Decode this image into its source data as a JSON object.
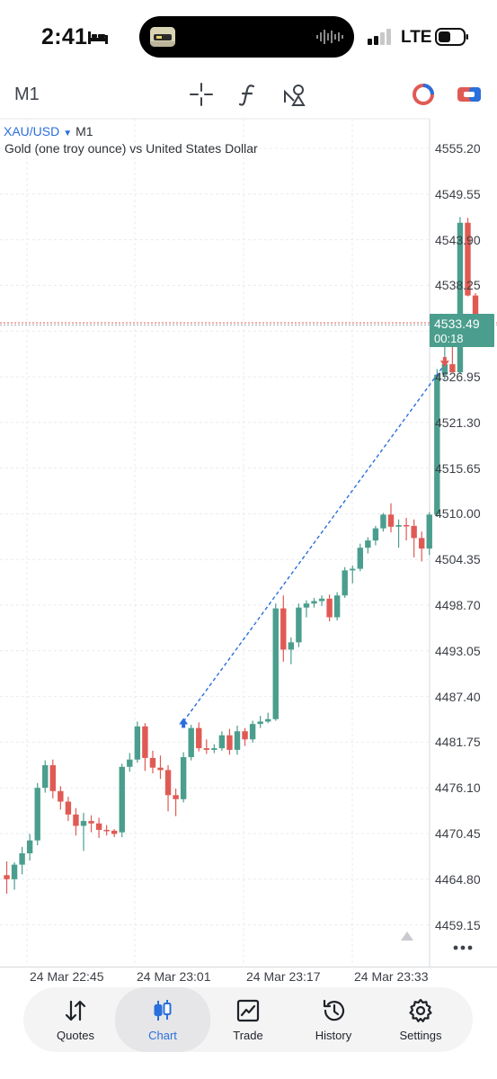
{
  "status_bar": {
    "time": "2:41",
    "network": "LTE"
  },
  "toolbar": {
    "timeframe": "M1",
    "tools": [
      "crosshair-icon",
      "indicators-icon",
      "objects-icon",
      "one-click-trading-icon",
      "account-icon"
    ]
  },
  "chart": {
    "symbol": "XAU/USD",
    "timeframe": "M1",
    "description": "Gold (one troy ounce) vs United States Dollar",
    "current_price": "4533.49",
    "countdown": "00:18",
    "bull_color": "#4b9e8d",
    "bear_color": "#e05a54",
    "trade_line_color": "#2a6fdb",
    "price_ticks": [
      "4555.20",
      "4549.55",
      "4543.90",
      "4538.25",
      "4532.60",
      "4526.95",
      "4521.30",
      "4515.65",
      "4510.00",
      "4504.35",
      "4498.70",
      "4493.05",
      "4487.40",
      "4481.75",
      "4476.10",
      "4470.45",
      "4464.80",
      "4459.15"
    ],
    "time_ticks": [
      "24 Mar 22:45",
      "24 Mar 23:01",
      "24 Mar 23:17",
      "24 Mar 23:33"
    ]
  },
  "chart_data": {
    "type": "candlestick",
    "symbol": "XAU/USD",
    "timeframe": "M1",
    "title": "XAU/USD",
    "subtitle": "Gold (one troy ounce) vs United States Dollar",
    "ylim": [
      4455.5,
      4558.5
    ],
    "grid": true,
    "categories_labels": [
      "24 Mar 22:45",
      "24 Mar 23:01",
      "24 Mar 23:17",
      "24 Mar 23:33"
    ],
    "candles": [
      {
        "o": 4465.3,
        "h": 4467.0,
        "l": 4463.0,
        "c": 4464.8
      },
      {
        "o": 4464.8,
        "h": 4466.9,
        "l": 4463.5,
        "c": 4466.6
      },
      {
        "o": 4466.6,
        "h": 4468.8,
        "l": 4465.4,
        "c": 4468.0
      },
      {
        "o": 4468.0,
        "h": 4470.4,
        "l": 4467.1,
        "c": 4469.6
      },
      {
        "o": 4469.6,
        "h": 4476.7,
        "l": 4469.0,
        "c": 4476.1
      },
      {
        "o": 4476.1,
        "h": 4479.5,
        "l": 4475.5,
        "c": 4478.9
      },
      {
        "o": 4478.9,
        "h": 4479.6,
        "l": 4474.8,
        "c": 4475.7
      },
      {
        "o": 4475.7,
        "h": 4476.3,
        "l": 4473.4,
        "c": 4474.4
      },
      {
        "o": 4474.4,
        "h": 4475.0,
        "l": 4472.0,
        "c": 4472.8
      },
      {
        "o": 4472.8,
        "h": 4473.6,
        "l": 4470.2,
        "c": 4471.4
      },
      {
        "o": 4471.4,
        "h": 4473.0,
        "l": 4468.3,
        "c": 4472.0
      },
      {
        "o": 4472.0,
        "h": 4472.7,
        "l": 4470.6,
        "c": 4471.7
      },
      {
        "o": 4471.7,
        "h": 4472.4,
        "l": 4469.9,
        "c": 4470.9
      },
      {
        "o": 4470.9,
        "h": 4471.5,
        "l": 4470.2,
        "c": 4470.8
      },
      {
        "o": 4470.8,
        "h": 4471.0,
        "l": 4470.0,
        "c": 4470.4
      },
      {
        "o": 4470.6,
        "h": 4479.1,
        "l": 4470.0,
        "c": 4478.7
      },
      {
        "o": 4478.7,
        "h": 4480.4,
        "l": 4478.1,
        "c": 4479.6
      },
      {
        "o": 4479.6,
        "h": 4484.3,
        "l": 4479.2,
        "c": 4483.7
      },
      {
        "o": 4483.7,
        "h": 4484.1,
        "l": 4478.2,
        "c": 4479.8
      },
      {
        "o": 4479.8,
        "h": 4480.7,
        "l": 4477.9,
        "c": 4478.6
      },
      {
        "o": 4478.6,
        "h": 4480.1,
        "l": 4477.2,
        "c": 4478.3
      },
      {
        "o": 4478.3,
        "h": 4478.9,
        "l": 4473.2,
        "c": 4475.2
      },
      {
        "o": 4475.2,
        "h": 4476.0,
        "l": 4472.6,
        "c": 4474.7
      },
      {
        "o": 4474.7,
        "h": 4480.5,
        "l": 4474.3,
        "c": 4479.9
      },
      {
        "o": 4479.9,
        "h": 4483.9,
        "l": 4479.5,
        "c": 4483.5
      },
      {
        "o": 4483.5,
        "h": 4484.2,
        "l": 4480.6,
        "c": 4481.0
      },
      {
        "o": 4481.0,
        "h": 4482.1,
        "l": 4480.3,
        "c": 4480.8
      },
      {
        "o": 4480.8,
        "h": 4481.5,
        "l": 4480.4,
        "c": 4481.0
      },
      {
        "o": 4481.0,
        "h": 4483.1,
        "l": 4480.7,
        "c": 4482.6
      },
      {
        "o": 4482.6,
        "h": 4483.4,
        "l": 4480.2,
        "c": 4480.8
      },
      {
        "o": 4480.8,
        "h": 4483.8,
        "l": 4480.2,
        "c": 4483.1
      },
      {
        "o": 4483.1,
        "h": 4483.5,
        "l": 4481.3,
        "c": 4482.1
      },
      {
        "o": 4482.1,
        "h": 4484.4,
        "l": 4481.7,
        "c": 4484.0
      },
      {
        "o": 4484.0,
        "h": 4485.0,
        "l": 4483.5,
        "c": 4484.3
      },
      {
        "o": 4484.3,
        "h": 4485.4,
        "l": 4484.1,
        "c": 4484.6
      },
      {
        "o": 4484.6,
        "h": 4498.9,
        "l": 4484.4,
        "c": 4498.3
      },
      {
        "o": 4498.3,
        "h": 4499.9,
        "l": 4491.7,
        "c": 4493.2
      },
      {
        "o": 4493.2,
        "h": 4494.7,
        "l": 4491.4,
        "c": 4494.1
      },
      {
        "o": 4494.1,
        "h": 4498.9,
        "l": 4493.5,
        "c": 4498.4
      },
      {
        "o": 4498.4,
        "h": 4499.3,
        "l": 4497.2,
        "c": 4498.9
      },
      {
        "o": 4498.9,
        "h": 4499.6,
        "l": 4498.4,
        "c": 4499.2
      },
      {
        "o": 4499.2,
        "h": 4499.9,
        "l": 4498.6,
        "c": 4499.5
      },
      {
        "o": 4499.5,
        "h": 4500.0,
        "l": 4496.7,
        "c": 4497.2
      },
      {
        "o": 4497.2,
        "h": 4500.3,
        "l": 4496.8,
        "c": 4499.9
      },
      {
        "o": 4499.9,
        "h": 4503.4,
        "l": 4499.6,
        "c": 4503.0
      },
      {
        "o": 4503.0,
        "h": 4503.6,
        "l": 4501.4,
        "c": 4503.2
      },
      {
        "o": 4503.2,
        "h": 4506.3,
        "l": 4502.9,
        "c": 4505.8
      },
      {
        "o": 4505.8,
        "h": 4507.1,
        "l": 4505.1,
        "c": 4506.7
      },
      {
        "o": 4506.7,
        "h": 4508.5,
        "l": 4506.1,
        "c": 4508.2
      },
      {
        "o": 4508.2,
        "h": 4510.1,
        "l": 4507.8,
        "c": 4509.9
      },
      {
        "o": 4509.9,
        "h": 4511.3,
        "l": 4507.7,
        "c": 4508.4
      },
      {
        "o": 4508.4,
        "h": 4509.3,
        "l": 4505.8,
        "c": 4508.6
      },
      {
        "o": 4508.6,
        "h": 4509.5,
        "l": 4506.7,
        "c": 4508.5
      },
      {
        "o": 4508.5,
        "h": 4509.3,
        "l": 4504.6,
        "c": 4507.0
      },
      {
        "o": 4507.0,
        "h": 4507.8,
        "l": 4504.1,
        "c": 4505.7
      },
      {
        "o": 4505.7,
        "h": 4510.2,
        "l": 4504.9,
        "c": 4509.9
      },
      {
        "o": 4509.9,
        "h": 4527.9,
        "l": 4509.6,
        "c": 4527.2
      },
      {
        "o": 4527.2,
        "h": 4531.2,
        "l": 4526.6,
        "c": 4528.5
      },
      {
        "o": 4528.5,
        "h": 4531.3,
        "l": 4527.6,
        "c": 4527.5
      },
      {
        "o": 4527.5,
        "h": 4546.7,
        "l": 4527.3,
        "c": 4546.0
      },
      {
        "o": 4546.0,
        "h": 4546.6,
        "l": 4536.9,
        "c": 4537.0
      },
      {
        "o": 4537.0,
        "h": 4537.3,
        "l": 4531.6,
        "c": 4533.5
      }
    ],
    "trade": {
      "buy_price": 4484.3,
      "sell_price": 4528.5
    },
    "current_price": 4533.49
  },
  "nav": [
    {
      "label": "Quotes",
      "icon": "quotes-icon"
    },
    {
      "label": "Chart",
      "icon": "chart-icon"
    },
    {
      "label": "Trade",
      "icon": "trade-icon"
    },
    {
      "label": "History",
      "icon": "history-icon"
    },
    {
      "label": "Settings",
      "icon": "settings-icon"
    }
  ]
}
